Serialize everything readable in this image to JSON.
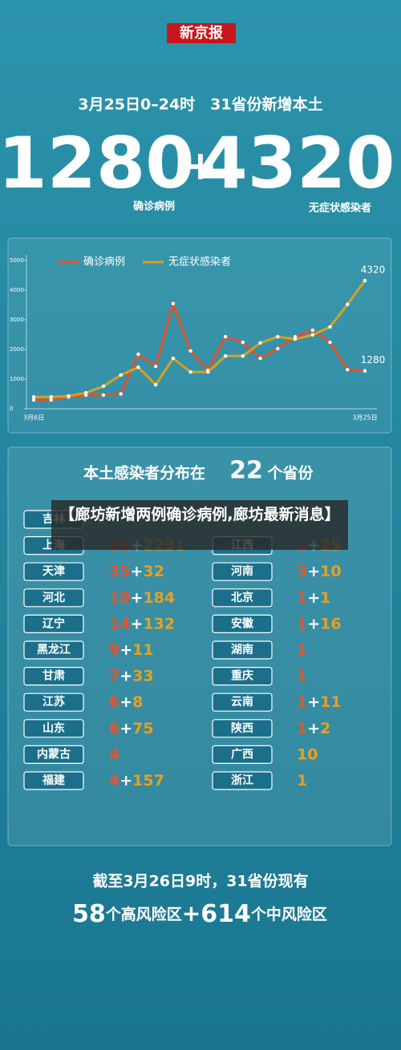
{
  "header": {
    "logo": "新京报",
    "subtitle": "3月25日0–24时　31省份新增本土",
    "confirmed": 1280,
    "plus": "+",
    "asymptomatic": 4320,
    "confirmed_label": "确诊病例",
    "asymptomatic_label": "无症状感染者"
  },
  "chart_data": {
    "type": "line",
    "categories": [
      "3月6日",
      null,
      null,
      null,
      null,
      null,
      null,
      null,
      null,
      null,
      null,
      null,
      null,
      null,
      null,
      null,
      null,
      null,
      null,
      "3月25日"
    ],
    "series": [
      {
        "name": "确诊病例",
        "color": "#e0522a",
        "values": [
          300,
          300,
          400,
          460,
          460,
          500,
          1840,
          1430,
          3550,
          1950,
          1300,
          2430,
          2240,
          1700,
          2030,
          2430,
          2650,
          2240,
          1320,
          1280
        ]
      },
      {
        "name": "无症状感染者",
        "color": "#d9a020",
        "values": [
          400,
          400,
          430,
          540,
          760,
          1140,
          1400,
          810,
          1700,
          1240,
          1240,
          1780,
          1780,
          2220,
          2430,
          2350,
          2490,
          2760,
          3520,
          4320
        ]
      }
    ],
    "ylim": [
      0,
      5000
    ],
    "yticks": [
      0,
      1000,
      2000,
      3000,
      4000,
      5000
    ],
    "legend": "top"
  },
  "table": {
    "title_prefix": "本土感染者分布在",
    "title_number": 22,
    "title_suffix": "个省份",
    "left": [
      {
        "name": "吉林"
      },
      {
        "name": "上海",
        "confirmed": 38,
        "asymptomatic": 2231
      },
      {
        "name": "天津",
        "confirmed": 35,
        "asymptomatic": 32
      },
      {
        "name": "河北",
        "confirmed": 19,
        "asymptomatic": 184
      },
      {
        "name": "辽宁",
        "confirmed": 14,
        "asymptomatic": 132
      },
      {
        "name": "黑龙江",
        "confirmed": 9,
        "asymptomatic": 11
      },
      {
        "name": "甘肃",
        "confirmed": 7,
        "asymptomatic": 33
      },
      {
        "name": "江苏",
        "confirmed": 6,
        "asymptomatic": 8
      },
      {
        "name": "山东",
        "confirmed": 6,
        "asymptomatic": 75
      },
      {
        "name": "内蒙古",
        "confirmed": 4
      },
      {
        "name": "福建",
        "confirmed": 4,
        "asymptomatic": 157
      }
    ],
    "right": [
      {},
      {
        "name": "江西",
        "confirmed": 3,
        "asymptomatic": 25
      },
      {
        "name": "河南",
        "confirmed": 3,
        "asymptomatic": 10
      },
      {
        "name": "北京",
        "confirmed": 1,
        "asymptomatic": 1
      },
      {
        "name": "安徽",
        "confirmed": 1,
        "asymptomatic": 16
      },
      {
        "name": "湖南",
        "confirmed": 1
      },
      {
        "name": "重庆",
        "confirmed": 1
      },
      {
        "name": "云南",
        "confirmed": 1,
        "asymptomatic": 11
      },
      {
        "name": "陕西",
        "confirmed": 1,
        "asymptomatic": 2
      },
      {
        "name": "广西",
        "asymptomatic": 10
      },
      {
        "name": "浙江",
        "asymptomatic": 1
      }
    ]
  },
  "footer": {
    "line1": "截至3月26日9时，31省份现有",
    "high": 58,
    "high_label": "个高风险区",
    "plus": "+",
    "medium": 614,
    "medium_label": "个中风险区"
  },
  "overlay": {
    "headline": "【廊坊新增两例确诊病例,廊坊最新消息】"
  }
}
